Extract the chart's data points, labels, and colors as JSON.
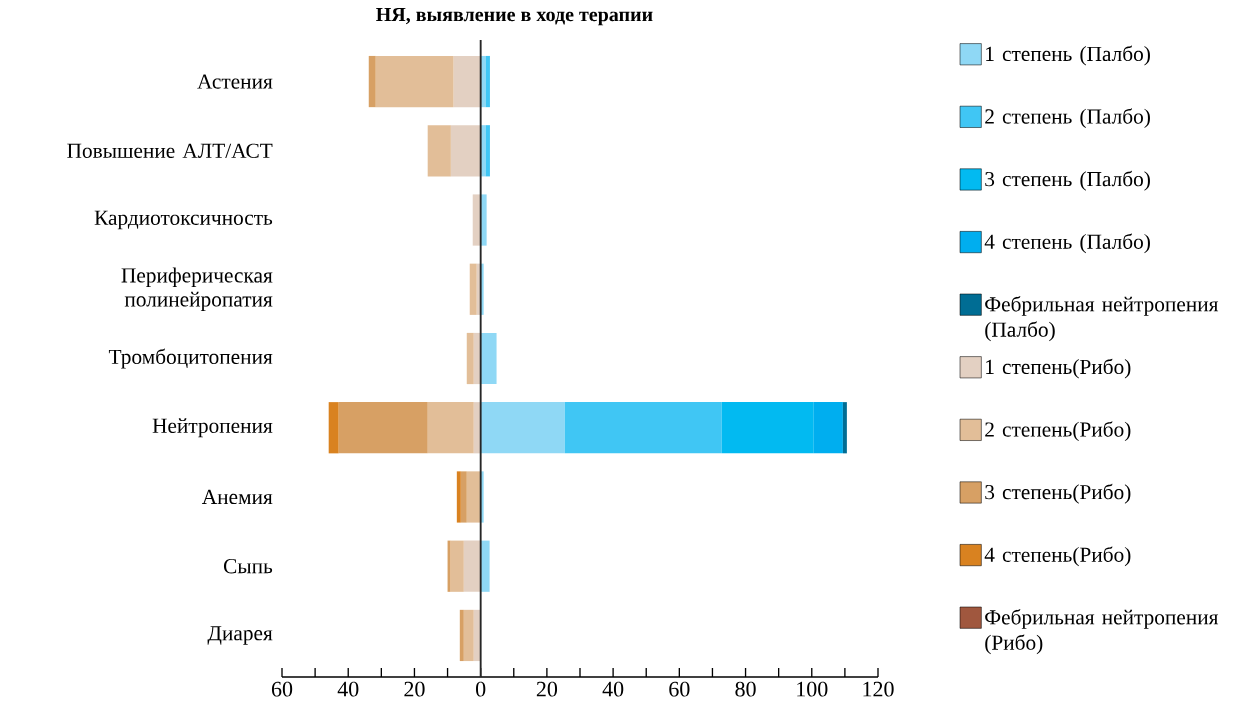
{
  "chart_data": {
    "type": "bar",
    "orientation": "horizontal",
    "stacked": true,
    "title": "НЯ, выявление в ходе терапии",
    "categories": [
      "Астения",
      "Повышение АЛТ/АСТ",
      "Кардиотоксичность",
      "Периферическая полинейропатия",
      "Тромбоцитопения",
      "Нейтропения",
      "Анемия",
      "Сыпь",
      "Диарея"
    ],
    "series": [
      {
        "name": "1 степень (Палбо)",
        "color": "#8fd8f5",
        "values": [
          1.5,
          1.5,
          1.8,
          0.9,
          4.8,
          25.4,
          0.9,
          2.7,
          null
        ]
      },
      {
        "name": "2 степень (Палбо)",
        "color": "#40c6f4",
        "values": [
          1.3,
          1.3,
          null,
          null,
          null,
          47.4,
          null,
          null,
          null
        ]
      },
      {
        "name": "3 степень (Палбо)",
        "color": "#02baf1",
        "values": [
          null,
          null,
          null,
          null,
          null,
          27.8,
          null,
          null,
          null
        ]
      },
      {
        "name": "4 степень (Палбо)",
        "color": "#00aeef",
        "values": [
          null,
          null,
          null,
          null,
          null,
          8.8,
          null,
          null,
          null
        ]
      },
      {
        "name": "Фебрильная нейтропения (Палбо)",
        "color": "#006d94",
        "values": [
          null,
          null,
          null,
          null,
          null,
          1.2,
          null,
          null,
          null
        ]
      },
      {
        "name": "1 степень(Рибо)",
        "color": "#e3d0c2",
        "values": [
          -8.2,
          -9,
          -2.4,
          -1.2,
          -2.1,
          -2.1,
          null,
          -5.1,
          -2.1
        ]
      },
      {
        "name": "2 степень(Рибо)",
        "color": "#e2be98",
        "values": [
          -23.5,
          -7,
          null,
          -2.1,
          -2.1,
          -13.9,
          -4.2,
          -4,
          -3
        ]
      },
      {
        "name": "3 степень(Рибо)",
        "color": "#d7a064",
        "values": [
          -2.1,
          null,
          null,
          null,
          null,
          -26.9,
          -1.8,
          -0.9,
          -1.2
        ]
      },
      {
        "name": "4 степень(Рибо)",
        "color": "#d98220",
        "values": [
          null,
          null,
          null,
          null,
          null,
          -3,
          -1.2,
          null,
          null
        ]
      },
      {
        "name": "Фебрильная нейтропения (Рибо)",
        "color": "#a0573e",
        "values": [
          null,
          null,
          null,
          null,
          null,
          null,
          null,
          null,
          null
        ]
      }
    ],
    "xlim": [
      -60,
      120
    ],
    "xticks": [
      {
        "value": -60,
        "label": "60"
      },
      {
        "value": -50,
        "label": null
      },
      {
        "value": -40,
        "label": "40"
      },
      {
        "value": -30,
        "label": null
      },
      {
        "value": -20,
        "label": "20"
      },
      {
        "value": -10,
        "label": null
      },
      0,
      {
        "value": 10,
        "label": null
      },
      20,
      {
        "value": 30,
        "label": null
      },
      40,
      {
        "value": 50,
        "label": null
      },
      60,
      {
        "value": 70,
        "label": null
      },
      80,
      {
        "value": 90,
        "label": null
      },
      100,
      {
        "value": 110,
        "label": null
      },
      120
    ],
    "legend": "right"
  }
}
